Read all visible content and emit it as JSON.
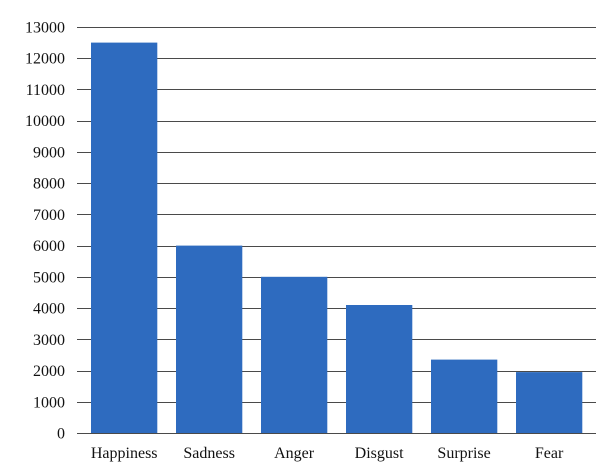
{
  "chart_data": {
    "type": "bar",
    "categories": [
      "Happiness",
      "Sadness",
      "Anger",
      "Disgust",
      "Surprise",
      "Fear"
    ],
    "values": [
      12500,
      6000,
      5000,
      4100,
      2350,
      1950
    ],
    "title": "",
    "xlabel": "",
    "ylabel": "",
    "ylim": [
      0,
      13000
    ],
    "yticks": [
      0,
      1000,
      2000,
      3000,
      4000,
      5000,
      6000,
      7000,
      8000,
      9000,
      10000,
      11000,
      12000,
      13000
    ],
    "grid": true,
    "legend": "none",
    "colors": {
      "bar": "#2e6bbf",
      "grid": "#4a4a4a"
    }
  }
}
